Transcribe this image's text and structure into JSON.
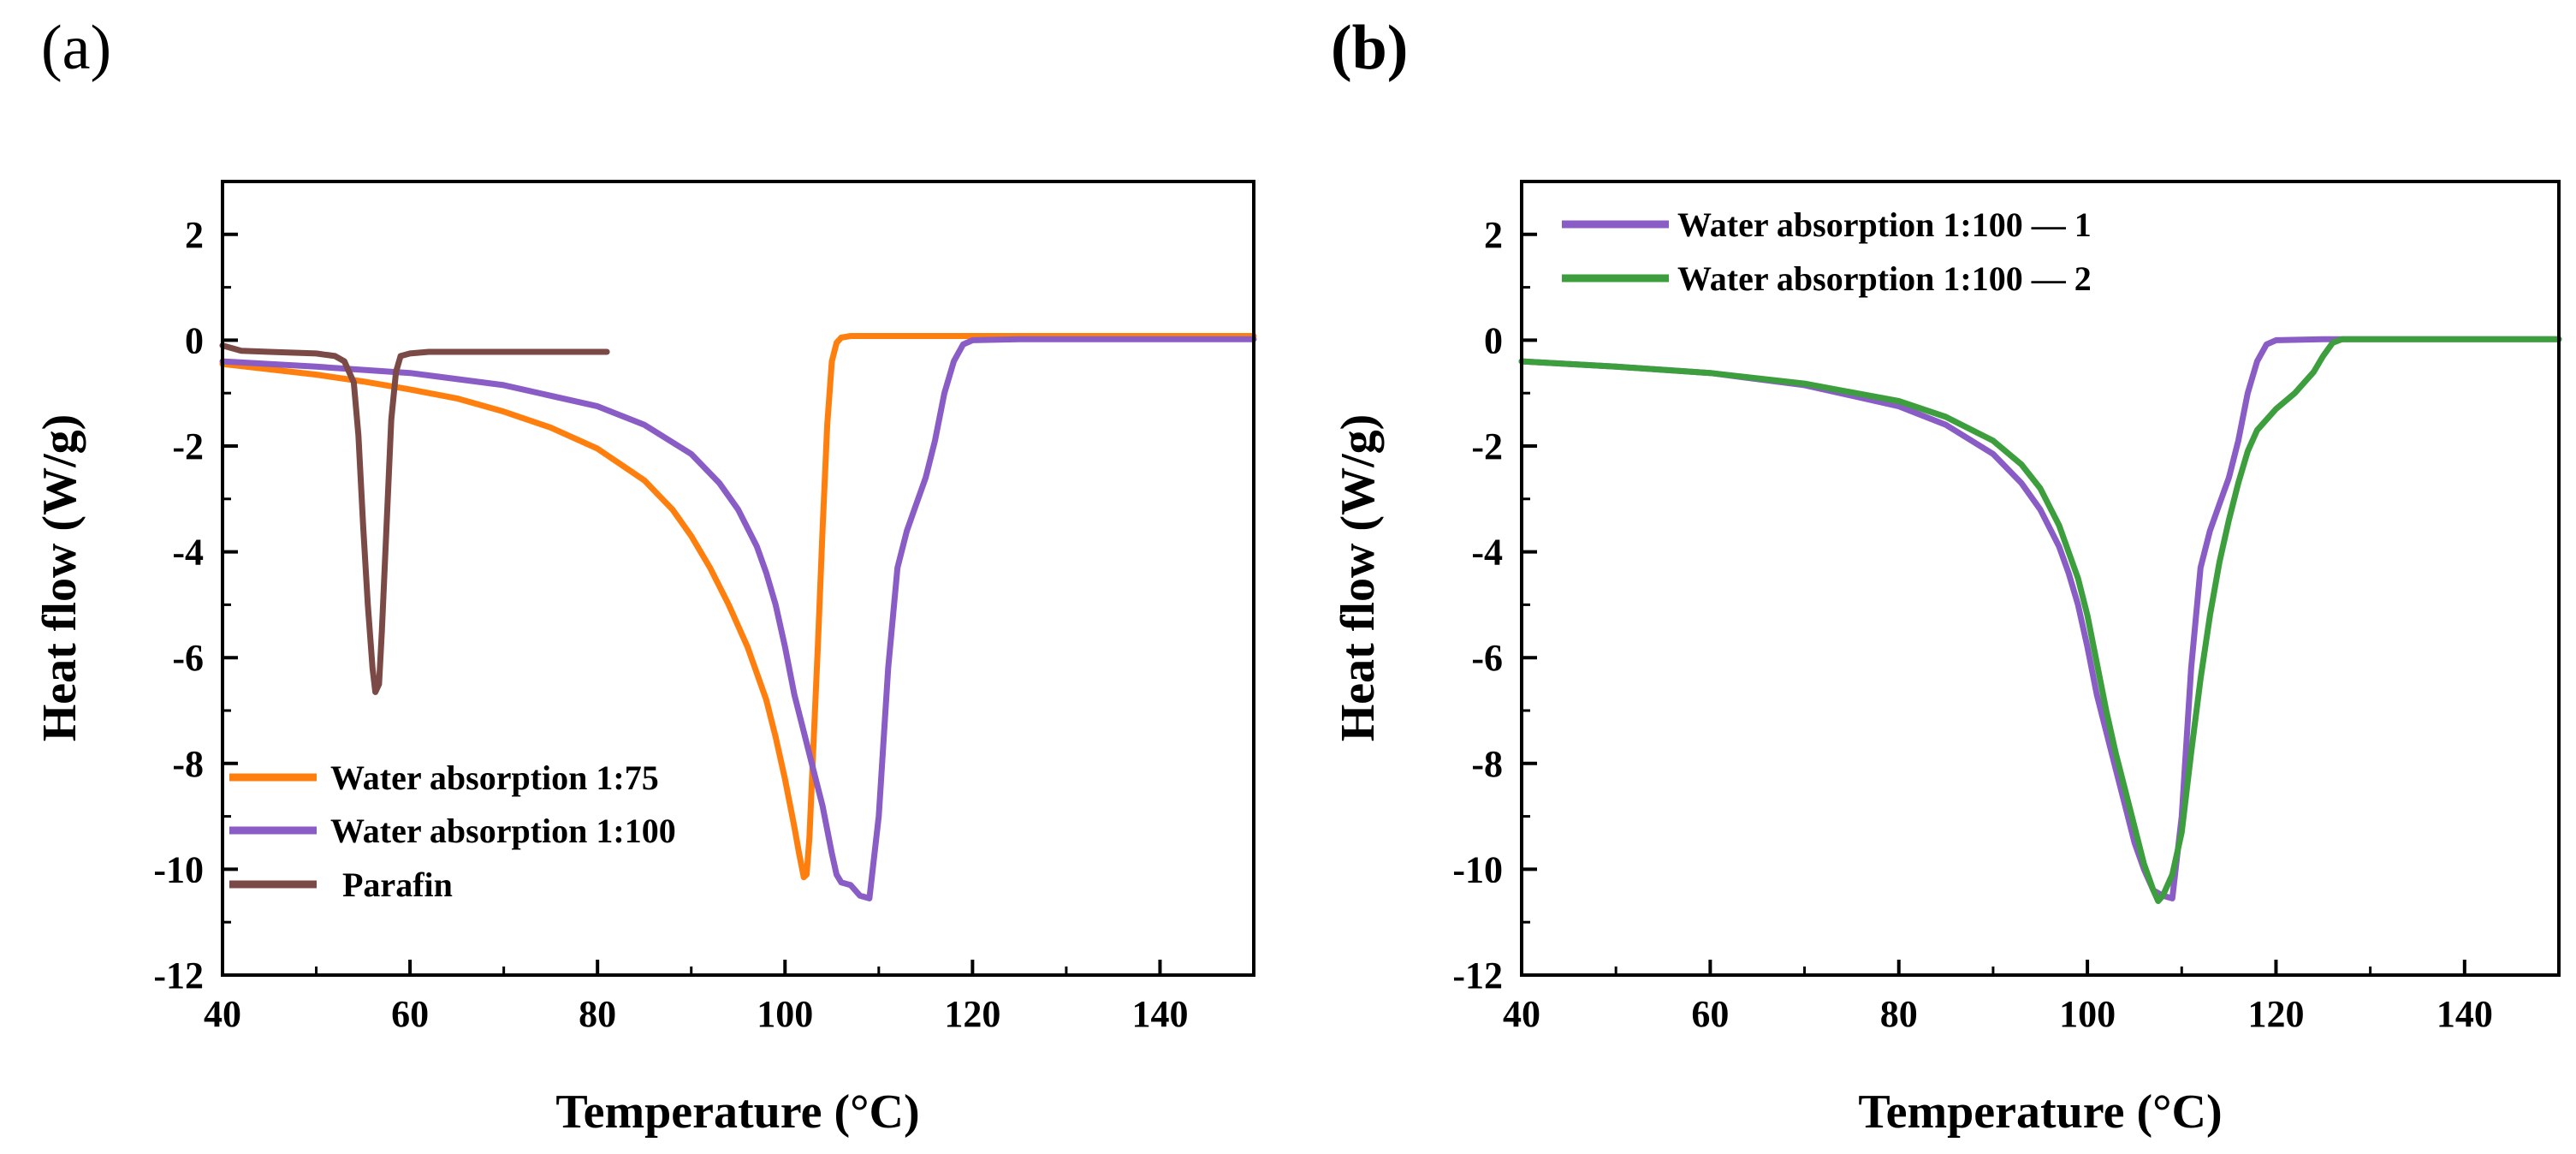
{
  "colors": {
    "orange": "#ff7f0e",
    "purple": "#8a5cc6",
    "brown": "#7b4a46",
    "green": "#3d9e3d"
  },
  "chart_data": [
    {
      "panel_label": "(a)",
      "type": "line",
      "xlabel": "Temperature (°C)",
      "ylabel": "Heat flow (W/g)",
      "xlim": [
        40,
        150
      ],
      "ylim": [
        -12,
        3
      ],
      "xticks": [
        40,
        60,
        80,
        100,
        120,
        140
      ],
      "yticks": [
        2,
        0,
        -2,
        -4,
        -6,
        -8,
        -10,
        -12
      ],
      "xtick_labels": [
        "40",
        "60",
        "80",
        "100",
        "120",
        "140"
      ],
      "ytick_labels": [
        "2",
        "0",
        "-2",
        "-4",
        "-6",
        "-8",
        "-10",
        "-12"
      ],
      "legend_position": "bottom-left",
      "series": [
        {
          "name": "Water absorption 1:75",
          "color": "#ff7f0e",
          "x": [
            40,
            45,
            50,
            55,
            60,
            65,
            70,
            75,
            80,
            85,
            88,
            90,
            92,
            94,
            96,
            98,
            99,
            100,
            101,
            101.5,
            102,
            102.3,
            102.6,
            103,
            103.5,
            104,
            104.5,
            105,
            105.5,
            106,
            107,
            110,
            120,
            130,
            140,
            150
          ],
          "y": [
            -0.45,
            -0.55,
            -0.65,
            -0.78,
            -0.93,
            -1.1,
            -1.35,
            -1.65,
            -2.05,
            -2.65,
            -3.2,
            -3.7,
            -4.3,
            -5.0,
            -5.8,
            -6.8,
            -7.5,
            -8.3,
            -9.2,
            -9.7,
            -10.15,
            -10.1,
            -9.4,
            -7.8,
            -5.8,
            -3.6,
            -1.6,
            -0.4,
            -0.05,
            0.05,
            0.08,
            0.08,
            0.08,
            0.08,
            0.08,
            0.08
          ]
        },
        {
          "name": "Water absorption 1:100",
          "color": "#8a5cc6",
          "x": [
            40,
            50,
            60,
            70,
            80,
            85,
            90,
            93,
            95,
            97,
            98,
            99,
            100,
            101,
            102,
            103,
            104,
            105,
            105.5,
            106,
            107,
            108,
            109,
            110,
            111,
            112,
            113,
            114,
            115,
            116,
            117,
            118,
            119,
            120,
            125,
            130,
            140,
            150
          ],
          "y": [
            -0.4,
            -0.5,
            -0.62,
            -0.85,
            -1.25,
            -1.6,
            -2.15,
            -2.7,
            -3.2,
            -3.9,
            -4.4,
            -5.0,
            -5.8,
            -6.7,
            -7.4,
            -8.1,
            -8.8,
            -9.7,
            -10.1,
            -10.25,
            -10.3,
            -10.5,
            -10.55,
            -9.0,
            -6.2,
            -4.3,
            -3.6,
            -3.1,
            -2.6,
            -1.9,
            -1.0,
            -0.4,
            -0.08,
            0.0,
            0.02,
            0.02,
            0.02,
            0.02
          ]
        },
        {
          "name": "Parafin",
          "color": "#7b4a46",
          "x": [
            40,
            42,
            45,
            50,
            52,
            53,
            54,
            54.5,
            55,
            55.5,
            56,
            56.3,
            56.7,
            57,
            57.5,
            58,
            58.5,
            59,
            60,
            62,
            65,
            70,
            75,
            81
          ],
          "y": [
            -0.1,
            -0.2,
            -0.22,
            -0.25,
            -0.3,
            -0.4,
            -0.8,
            -1.8,
            -3.5,
            -5.0,
            -6.2,
            -6.65,
            -6.5,
            -5.5,
            -3.5,
            -1.5,
            -0.6,
            -0.3,
            -0.25,
            -0.22,
            -0.22,
            -0.22,
            -0.22,
            -0.22
          ]
        }
      ]
    },
    {
      "panel_label": "(b)",
      "type": "line",
      "xlabel": "Temperature (°C)",
      "ylabel": "Heat flow (W/g)",
      "xlim": [
        40,
        150
      ],
      "ylim": [
        -12,
        3
      ],
      "xticks": [
        40,
        60,
        80,
        100,
        120,
        140
      ],
      "yticks": [
        2,
        0,
        -2,
        -4,
        -6,
        -8,
        -10,
        -12
      ],
      "xtick_labels": [
        "40",
        "60",
        "80",
        "100",
        "120",
        "140"
      ],
      "ytick_labels": [
        "2",
        "0",
        "-2",
        "-4",
        "-6",
        "-8",
        "-10",
        "-12"
      ],
      "legend_position": "top-left",
      "series": [
        {
          "name": "Water absorption 1:100 — 1",
          "color": "#8a5cc6",
          "x": [
            40,
            50,
            60,
            70,
            80,
            85,
            90,
            93,
            95,
            97,
            98,
            99,
            100,
            101,
            102,
            103,
            104,
            105,
            106,
            107,
            108,
            109,
            110,
            111,
            112,
            113,
            114,
            115,
            116,
            117,
            118,
            119,
            120,
            125,
            130,
            140,
            150
          ],
          "y": [
            -0.4,
            -0.5,
            -0.62,
            -0.85,
            -1.25,
            -1.6,
            -2.15,
            -2.7,
            -3.2,
            -3.9,
            -4.4,
            -5.0,
            -5.8,
            -6.7,
            -7.4,
            -8.1,
            -8.8,
            -9.5,
            -10.0,
            -10.4,
            -10.5,
            -10.55,
            -9.0,
            -6.2,
            -4.3,
            -3.6,
            -3.1,
            -2.6,
            -1.9,
            -1.0,
            -0.4,
            -0.08,
            0.0,
            0.02,
            0.02,
            0.02,
            0.02
          ]
        },
        {
          "name": "Water absorption 1:100 — 2",
          "color": "#3d9e3d",
          "x": [
            40,
            50,
            60,
            70,
            80,
            85,
            90,
            93,
            95,
            97,
            99,
            100,
            101,
            102,
            103,
            104,
            105,
            106,
            107,
            107.5,
            108,
            109,
            110,
            111,
            112,
            113,
            114,
            115,
            116,
            117,
            118,
            120,
            122,
            123,
            124,
            125,
            126,
            127,
            130,
            140,
            150
          ],
          "y": [
            -0.4,
            -0.5,
            -0.62,
            -0.82,
            -1.15,
            -1.45,
            -1.9,
            -2.35,
            -2.8,
            -3.5,
            -4.5,
            -5.2,
            -6.1,
            -7.0,
            -7.8,
            -8.5,
            -9.2,
            -9.9,
            -10.4,
            -10.6,
            -10.5,
            -10.1,
            -9.3,
            -7.8,
            -6.4,
            -5.2,
            -4.2,
            -3.4,
            -2.7,
            -2.1,
            -1.7,
            -1.3,
            -1.0,
            -0.8,
            -0.6,
            -0.3,
            -0.05,
            0.02,
            0.02,
            0.02,
            0.02
          ]
        }
      ]
    }
  ]
}
